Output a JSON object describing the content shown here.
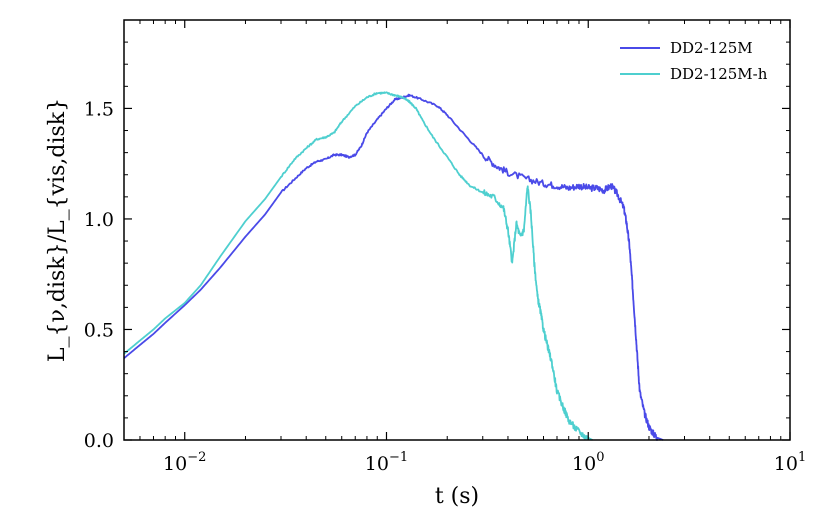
{
  "chart_data": {
    "type": "line",
    "title": "",
    "xlabel": "t (s)",
    "ylabel": "L_{ν,disk}/L_{vis,disk}",
    "xscale": "log",
    "xlim": [
      0.005,
      10
    ],
    "ylim": [
      0.0,
      1.9
    ],
    "grid": false,
    "legend_position": "top-right",
    "x_ticks": [
      {
        "value": 0.01,
        "base": "10",
        "exp": "−2"
      },
      {
        "value": 0.1,
        "base": "10",
        "exp": "−1"
      },
      {
        "value": 1,
        "base": "10",
        "exp": "0"
      },
      {
        "value": 10,
        "base": "10",
        "exp": "1"
      }
    ],
    "y_ticks": [
      {
        "value": 0.0,
        "label": "0.0"
      },
      {
        "value": 0.5,
        "label": "0.5"
      },
      {
        "value": 1.0,
        "label": "1.0"
      },
      {
        "value": 1.5,
        "label": "1.5"
      }
    ],
    "series": [
      {
        "name": "DD2-125M",
        "color": "#4a4ae8",
        "noisy": true,
        "points": [
          [
            0.005,
            0.37
          ],
          [
            0.006,
            0.43
          ],
          [
            0.007,
            0.48
          ],
          [
            0.008,
            0.53
          ],
          [
            0.01,
            0.61
          ],
          [
            0.012,
            0.68
          ],
          [
            0.015,
            0.78
          ],
          [
            0.02,
            0.92
          ],
          [
            0.025,
            1.02
          ],
          [
            0.03,
            1.12
          ],
          [
            0.035,
            1.18
          ],
          [
            0.04,
            1.23
          ],
          [
            0.045,
            1.26
          ],
          [
            0.05,
            1.27
          ],
          [
            0.055,
            1.29
          ],
          [
            0.06,
            1.29
          ],
          [
            0.065,
            1.28
          ],
          [
            0.07,
            1.29
          ],
          [
            0.075,
            1.33
          ],
          [
            0.08,
            1.39
          ],
          [
            0.09,
            1.45
          ],
          [
            0.1,
            1.5
          ],
          [
            0.11,
            1.54
          ],
          [
            0.12,
            1.55
          ],
          [
            0.13,
            1.56
          ],
          [
            0.15,
            1.54
          ],
          [
            0.18,
            1.51
          ],
          [
            0.2,
            1.47
          ],
          [
            0.25,
            1.37
          ],
          [
            0.3,
            1.29
          ],
          [
            0.35,
            1.24
          ],
          [
            0.4,
            1.21
          ],
          [
            0.5,
            1.18
          ],
          [
            0.6,
            1.16
          ],
          [
            0.7,
            1.15
          ],
          [
            0.8,
            1.14
          ],
          [
            0.9,
            1.15
          ],
          [
            1.0,
            1.14
          ],
          [
            1.1,
            1.14
          ],
          [
            1.2,
            1.13
          ],
          [
            1.3,
            1.15
          ],
          [
            1.4,
            1.11
          ],
          [
            1.5,
            1.05
          ],
          [
            1.55,
            0.98
          ],
          [
            1.6,
            0.88
          ],
          [
            1.65,
            0.72
          ],
          [
            1.7,
            0.55
          ],
          [
            1.75,
            0.38
          ],
          [
            1.8,
            0.22
          ],
          [
            1.9,
            0.12
          ],
          [
            2.0,
            0.06
          ],
          [
            2.1,
            0.03
          ],
          [
            2.2,
            0.01
          ],
          [
            2.35,
            0.0
          ]
        ]
      },
      {
        "name": "DD2-125M-h",
        "color": "#4ecfcf",
        "noisy": true,
        "points": [
          [
            0.005,
            0.39
          ],
          [
            0.006,
            0.45
          ],
          [
            0.007,
            0.5
          ],
          [
            0.008,
            0.55
          ],
          [
            0.01,
            0.62
          ],
          [
            0.012,
            0.7
          ],
          [
            0.015,
            0.83
          ],
          [
            0.02,
            0.99
          ],
          [
            0.025,
            1.09
          ],
          [
            0.03,
            1.19
          ],
          [
            0.035,
            1.27
          ],
          [
            0.04,
            1.32
          ],
          [
            0.045,
            1.36
          ],
          [
            0.05,
            1.37
          ],
          [
            0.055,
            1.39
          ],
          [
            0.06,
            1.44
          ],
          [
            0.07,
            1.51
          ],
          [
            0.08,
            1.55
          ],
          [
            0.09,
            1.57
          ],
          [
            0.1,
            1.57
          ],
          [
            0.11,
            1.56
          ],
          [
            0.12,
            1.55
          ],
          [
            0.13,
            1.53
          ],
          [
            0.14,
            1.5
          ],
          [
            0.15,
            1.45
          ],
          [
            0.17,
            1.37
          ],
          [
            0.2,
            1.28
          ],
          [
            0.23,
            1.2
          ],
          [
            0.26,
            1.15
          ],
          [
            0.3,
            1.12
          ],
          [
            0.34,
            1.1
          ],
          [
            0.38,
            1.05
          ],
          [
            0.4,
            0.95
          ],
          [
            0.42,
            0.8
          ],
          [
            0.44,
            0.98
          ],
          [
            0.46,
            0.92
          ],
          [
            0.48,
            0.95
          ],
          [
            0.5,
            1.15
          ],
          [
            0.52,
            1.02
          ],
          [
            0.54,
            0.8
          ],
          [
            0.56,
            0.65
          ],
          [
            0.58,
            0.58
          ],
          [
            0.6,
            0.5
          ],
          [
            0.63,
            0.42
          ],
          [
            0.66,
            0.35
          ],
          [
            0.7,
            0.22
          ],
          [
            0.75,
            0.15
          ],
          [
            0.8,
            0.09
          ],
          [
            0.87,
            0.05
          ],
          [
            0.95,
            0.02
          ],
          [
            1.05,
            0.0
          ]
        ]
      }
    ]
  }
}
